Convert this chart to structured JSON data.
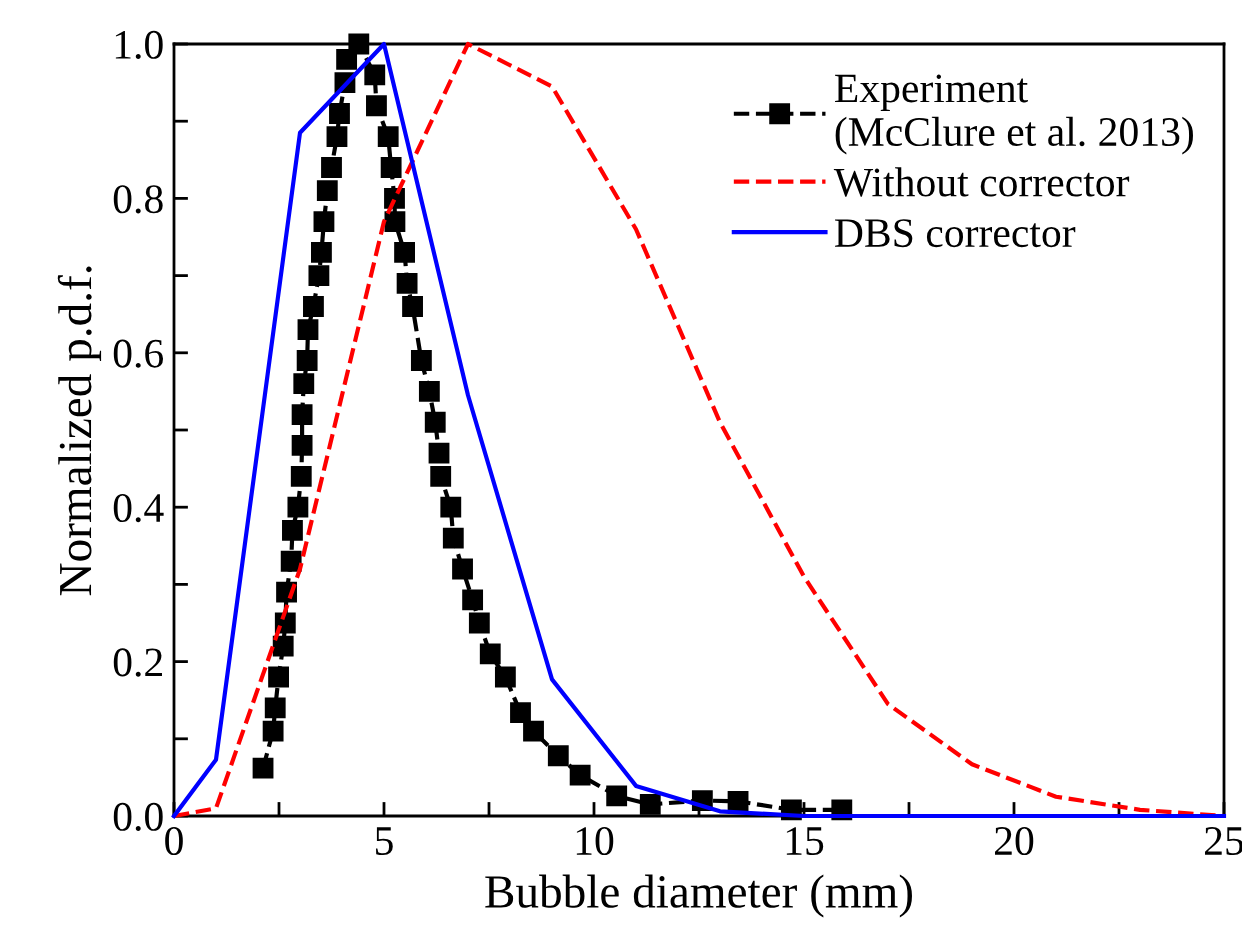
{
  "chart_data": {
    "type": "line",
    "xlabel": "Bubble diameter (mm)",
    "ylabel": "Normalized p.d.f.",
    "xlim": [
      0,
      25
    ],
    "ylim": [
      0,
      1.0
    ],
    "xticks": [
      0,
      {
        "value": 2.5,
        "label": null
      },
      5,
      {
        "value": 7.5,
        "label": null
      },
      10,
      {
        "value": 12.5,
        "label": null
      },
      15,
      {
        "value": 17.5,
        "label": null
      },
      20,
      {
        "value": 22.5,
        "label": null
      },
      25
    ],
    "yticks": [
      {
        "value": 0,
        "label": "0.0"
      },
      {
        "value": 0.1,
        "label": null
      },
      {
        "value": 0.2,
        "label": "0.2"
      },
      {
        "value": 0.3,
        "label": null
      },
      {
        "value": 0.4,
        "label": "0.4"
      },
      {
        "value": 0.5,
        "label": null
      },
      {
        "value": 0.6,
        "label": "0.6"
      },
      {
        "value": 0.7,
        "label": null
      },
      {
        "value": 0.8,
        "label": "0.8"
      },
      {
        "value": 0.9,
        "label": null
      },
      {
        "value": 1.0,
        "label": "1.0"
      }
    ],
    "grid": false,
    "legend": "top right",
    "series": [
      {
        "name": "Experiment\n(McClure et al. 2013)",
        "color": "#000000",
        "marker": "square",
        "line_style": "dashed",
        "x": [
          2.12,
          2.36,
          2.41,
          2.49,
          2.6,
          2.65,
          2.68,
          2.79,
          2.82,
          2.95,
          3.03,
          3.05,
          3.05,
          3.09,
          3.17,
          3.19,
          3.32,
          3.45,
          3.51,
          3.57,
          3.65,
          3.75,
          3.88,
          3.94,
          4.07,
          4.11,
          4.4,
          4.78,
          4.82,
          5.1,
          5.17,
          5.25,
          5.26,
          5.49,
          5.55,
          5.68,
          5.89,
          6.08,
          6.22,
          6.31,
          6.35,
          6.59,
          6.65,
          6.87,
          7.11,
          7.27,
          7.53,
          7.89,
          8.25,
          8.56,
          9.15,
          9.67,
          10.54,
          11.34,
          12.58,
          13.43,
          14.7,
          15.9
        ],
        "values": [
          0.062,
          0.11,
          0.14,
          0.18,
          0.22,
          0.25,
          0.29,
          0.33,
          0.37,
          0.4,
          0.44,
          0.48,
          0.52,
          0.56,
          0.59,
          0.63,
          0.66,
          0.7,
          0.73,
          0.77,
          0.81,
          0.84,
          0.88,
          0.91,
          0.95,
          0.98,
          1.0,
          0.96,
          0.92,
          0.88,
          0.84,
          0.8,
          0.77,
          0.73,
          0.69,
          0.66,
          0.59,
          0.55,
          0.51,
          0.47,
          0.44,
          0.4,
          0.36,
          0.32,
          0.28,
          0.25,
          0.21,
          0.18,
          0.134,
          0.11,
          0.078,
          0.053,
          0.026,
          0.015,
          0.02,
          0.019,
          0.008,
          0.008
        ]
      },
      {
        "name": "Without corrector",
        "color": "#ff0000",
        "marker": "none",
        "line_style": "dashed",
        "x": [
          0,
          1,
          3,
          5,
          7,
          9,
          11,
          13,
          15,
          17,
          19,
          21,
          23,
          25
        ],
        "values": [
          0,
          0.01,
          0.32,
          0.77,
          1.0,
          0.945,
          0.76,
          0.51,
          0.31,
          0.145,
          0.067,
          0.025,
          0.008,
          0.0
        ]
      },
      {
        "name": "DBS corrector",
        "color": "#0000ff",
        "marker": "none",
        "line_style": "solid",
        "x": [
          0,
          1,
          3,
          5,
          7,
          9,
          11,
          13,
          15,
          17,
          19,
          21,
          23,
          25
        ],
        "values": [
          0,
          0.073,
          0.885,
          1.0,
          0.545,
          0.177,
          0.039,
          0.006,
          0,
          0,
          0,
          0,
          0,
          0
        ]
      }
    ]
  }
}
